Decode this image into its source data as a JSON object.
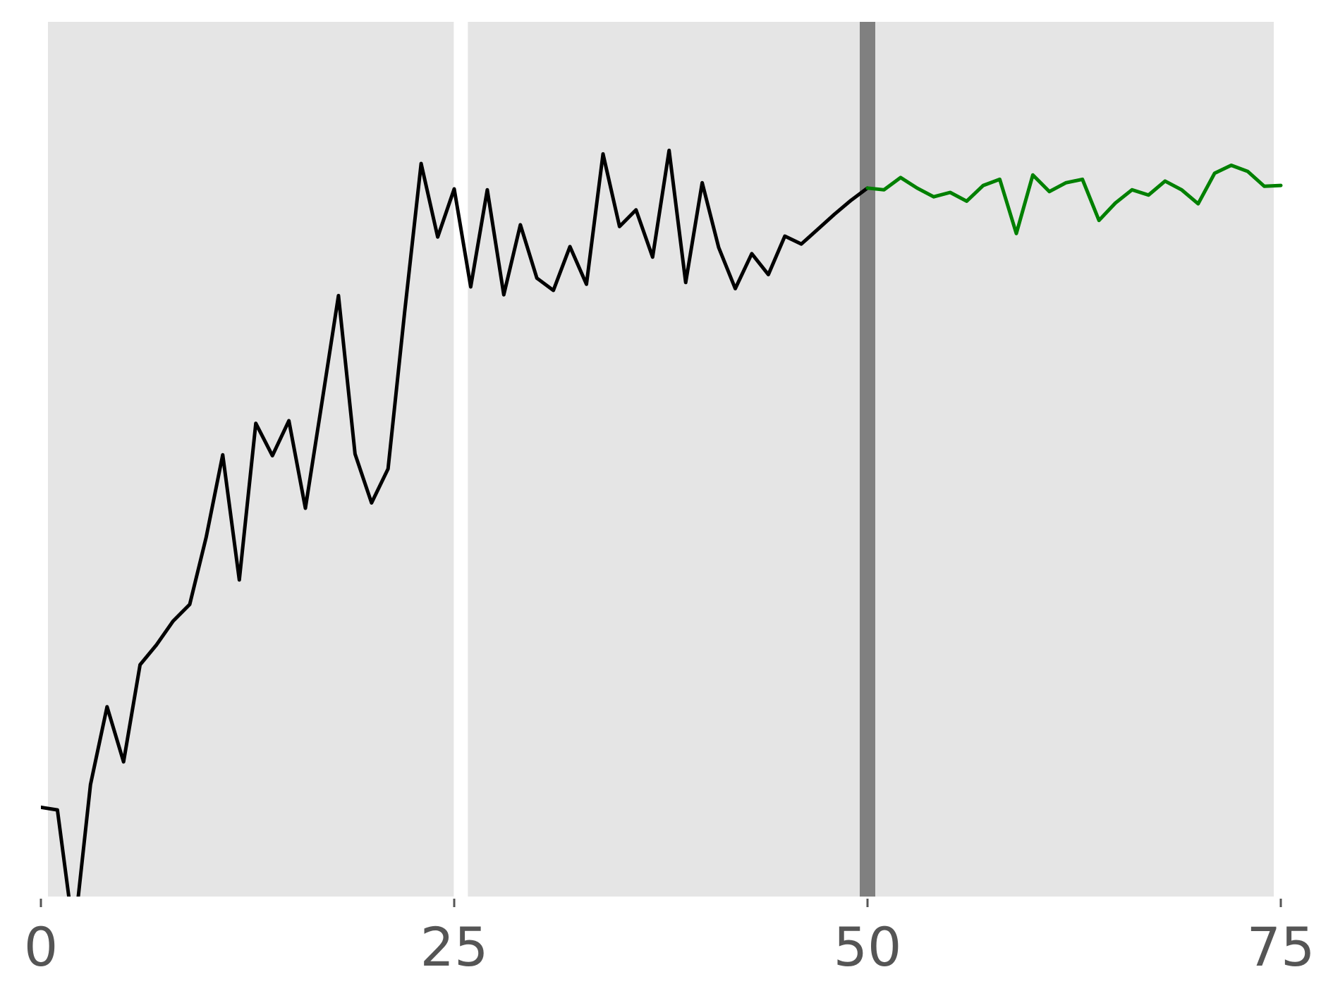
{
  "chart_data": {
    "type": "line",
    "title": "",
    "xlabel": "",
    "ylabel": "",
    "xlim": [
      0,
      75
    ],
    "ylim": [
      0,
      100
    ],
    "grid": false,
    "legend": "none",
    "x_ticks": [
      {
        "value": 0,
        "label": "0"
      },
      {
        "value": 25,
        "label": "25"
      },
      {
        "value": 50,
        "label": "50"
      },
      {
        "value": 75,
        "label": "75"
      }
    ],
    "colors": {
      "panel_background": "#e5e5e5",
      "panel_separator": "#ffffff",
      "marker_line": "#808080",
      "history_line": "#000000",
      "forecast_line": "#008000",
      "tick_text": "#555555"
    },
    "separator_x": 25.4,
    "marker_x": 50,
    "series": [
      {
        "role": "history",
        "color": "#000000",
        "x": [
          0,
          1,
          2,
          3,
          4,
          5,
          6,
          7,
          8,
          9,
          10,
          11,
          12,
          13,
          14,
          15,
          16,
          17,
          18,
          19,
          20,
          21,
          22,
          23,
          24,
          25,
          26,
          27,
          28,
          29,
          30,
          31,
          32,
          33,
          34,
          35,
          36,
          37,
          38,
          39,
          40,
          41,
          42,
          43,
          44,
          45,
          46,
          47,
          48,
          49,
          50
        ],
        "values": [
          10.2,
          9.9,
          -4.5,
          12.8,
          21.7,
          15.4,
          26.5,
          28.8,
          31.5,
          33.4,
          41.1,
          50.5,
          36.2,
          54.1,
          50.4,
          54.4,
          44.4,
          56.5,
          68.7,
          50.6,
          45.0,
          48.9,
          66.8,
          83.8,
          75.4,
          80.9,
          69.7,
          80.8,
          68.8,
          76.8,
          70.7,
          69.3,
          74.3,
          70.0,
          84.9,
          76.6,
          78.5,
          73.1,
          85.3,
          70.2,
          81.6,
          74.2,
          69.5,
          73.5,
          71.1,
          75.5,
          74.6,
          76.3,
          78.0,
          79.6,
          81.0
        ]
      },
      {
        "role": "forecast",
        "color": "#008000",
        "x": [
          50,
          51,
          52,
          53,
          54,
          55,
          56,
          57,
          58,
          59,
          60,
          61,
          62,
          63,
          64,
          65,
          66,
          67,
          68,
          69,
          70,
          71,
          72,
          73,
          74,
          75
        ],
        "values": [
          81.0,
          80.8,
          82.2,
          81.0,
          80.0,
          80.5,
          79.5,
          81.3,
          82.0,
          75.8,
          82.5,
          80.6,
          81.6,
          82.0,
          77.3,
          79.3,
          80.8,
          80.2,
          81.8,
          80.8,
          79.2,
          82.7,
          83.6,
          82.9,
          81.2,
          81.3
        ]
      }
    ]
  }
}
